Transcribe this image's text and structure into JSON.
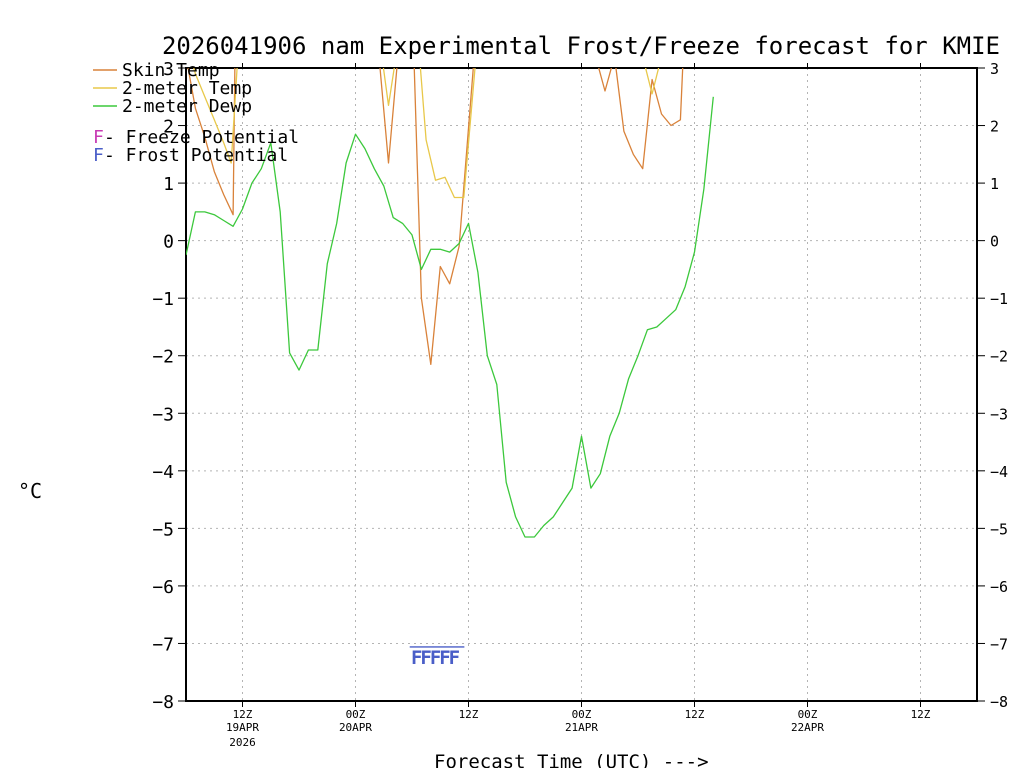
{
  "chart_data": {
    "type": "line",
    "title": "2026041906 nam Experimental Frost/Freeze forecast for KMIE",
    "ylabel": "°C",
    "xlabel": "Forecast Time (UTC) --->",
    "ylim": [
      -8,
      3
    ],
    "xlim": [
      0,
      84
    ],
    "x_unit": "hours after 2026-04-19 06Z",
    "grid": true,
    "y_ticks": [
      "-8",
      "-7",
      "-6",
      "-5",
      "-4",
      "-3",
      "-2",
      "-1",
      "0",
      "1",
      "2",
      "3"
    ],
    "x_ticks": [
      {
        "hour": 6,
        "time": "12Z",
        "date": "19APR",
        "year": "2026"
      },
      {
        "hour": 18,
        "time": "00Z",
        "date": "20APR",
        "year": ""
      },
      {
        "hour": 30,
        "time": "12Z",
        "date": "",
        "year": ""
      },
      {
        "hour": 42,
        "time": "00Z",
        "date": "21APR",
        "year": ""
      },
      {
        "hour": 54,
        "time": "12Z",
        "date": "",
        "year": ""
      },
      {
        "hour": 66,
        "time": "00Z",
        "date": "22APR",
        "year": ""
      },
      {
        "hour": 78,
        "time": "12Z",
        "date": "",
        "year": ""
      }
    ],
    "series": [
      {
        "name": "Skin Temp",
        "color": "#d9823a",
        "x": [
          0,
          1,
          2,
          3,
          4,
          5,
          5.2,
          20.5,
          21.5,
          22.5,
          24.2,
          25,
          26,
          27,
          28,
          29,
          30.6,
          43.5,
          44.5,
          45.5,
          46.5,
          47.5,
          48.5,
          49.5,
          50.5,
          51.5,
          52.5,
          52.8
        ],
        "values": [
          3.2,
          2.3,
          1.8,
          1.2,
          0.8,
          0.45,
          3.2,
          3.2,
          1.35,
          3.2,
          3.2,
          -1.0,
          -2.15,
          -0.45,
          -0.75,
          -0.1,
          3.2,
          3.2,
          2.6,
          3.2,
          1.9,
          1.5,
          1.25,
          2.8,
          2.2,
          2.0,
          2.1,
          3.2
        ]
      },
      {
        "name": "2-meter Temp",
        "color": "#e8c84a",
        "x": [
          0.5,
          1,
          2,
          3,
          4,
          4.8,
          5.5,
          20.8,
          21.5,
          22.3,
          24.8,
          25.5,
          26.5,
          27.5,
          28.5,
          29.5,
          30.8,
          48.5,
          49.5,
          50.5,
          51.2
        ],
        "values": [
          3.2,
          2.9,
          2.5,
          2.1,
          1.7,
          1.35,
          3.2,
          3.2,
          2.35,
          3.2,
          3.2,
          1.75,
          1.05,
          1.1,
          0.75,
          0.75,
          3.2,
          3.2,
          2.55,
          3.2,
          3.2
        ]
      },
      {
        "name": "2-meter Dewp",
        "color": "#3cc83c",
        "x": [
          0,
          1,
          2,
          3,
          4,
          5,
          6,
          7,
          8,
          9,
          10,
          11,
          12,
          13,
          14,
          15,
          16,
          17,
          18,
          19,
          20,
          21,
          22,
          23,
          24,
          25,
          26,
          27,
          28,
          29,
          30,
          31,
          32,
          33,
          34,
          35,
          36,
          37,
          38,
          39,
          40,
          41,
          42,
          43,
          44,
          45,
          46,
          47,
          48,
          49,
          50,
          51,
          52,
          53,
          54,
          55,
          56
        ],
        "values": [
          -0.25,
          0.5,
          0.5,
          0.45,
          0.35,
          0.25,
          0.55,
          1.0,
          1.25,
          1.7,
          0.5,
          -1.95,
          -2.25,
          -1.9,
          -1.9,
          -0.4,
          0.3,
          1.35,
          1.85,
          1.6,
          1.25,
          0.95,
          0.4,
          0.3,
          0.1,
          -0.5,
          -0.15,
          -0.15,
          -0.2,
          -0.05,
          0.3,
          -0.55,
          -2.0,
          -2.5,
          -4.2,
          -4.8,
          -5.15,
          -5.15,
          -4.95,
          -4.8,
          -4.55,
          -4.3,
          -3.4,
          -4.3,
          -4.05,
          -3.4,
          -3.0,
          -2.4,
          -2.0,
          -1.55,
          -1.5,
          -1.35,
          -1.2,
          -0.8,
          -0.2,
          0.9,
          2.5
        ]
      }
    ],
    "legend": [
      {
        "label": "Skin Temp",
        "color": "#d9823a"
      },
      {
        "label": "2-meter Temp",
        "color": "#e8c84a"
      },
      {
        "label": "2-meter Dewp",
        "color": "#3cc83c"
      }
    ],
    "potential_legend": [
      {
        "letter": "F",
        "label": " - Freeze Potential",
        "color": "#c83cb4"
      },
      {
        "letter": "F",
        "label": " - Frost Potential",
        "color": "#4a5ec8"
      }
    ],
    "frost_flags": {
      "hours": [
        24.5,
        25.5,
        26.5,
        27.5,
        28.5
      ],
      "letter": "F",
      "y_value": -7.2,
      "color": "#4a5ec8"
    }
  }
}
